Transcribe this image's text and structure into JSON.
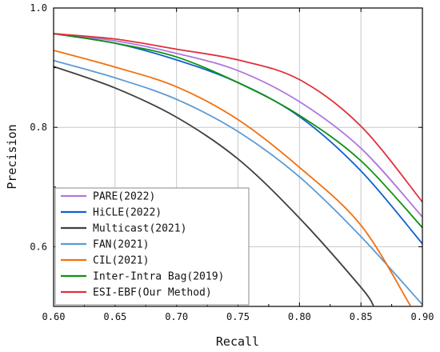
{
  "chart_data": {
    "type": "line",
    "title": "",
    "xlabel": "Recall",
    "ylabel": "Precision",
    "xlim": [
      0.6,
      0.9
    ],
    "ylim": [
      0.5,
      1.0
    ],
    "xticks": [
      0.6,
      0.65,
      0.7,
      0.75,
      0.8,
      0.85,
      0.9
    ],
    "xtick_labels": [
      "0.60",
      "0.65",
      "0.70",
      "0.75",
      "0.80",
      "0.85",
      "0.90"
    ],
    "yticks": [
      0.6,
      0.8,
      1.0
    ],
    "ytick_labels": [
      "0.6",
      "0.8",
      "1.0"
    ],
    "grid": true,
    "legend_position": "bottom-left",
    "series": [
      {
        "name": "PARE(2022)",
        "color": "#b077dc",
        "x": [
          0.6,
          0.65,
          0.7,
          0.75,
          0.8,
          0.85,
          0.9
        ],
        "y": [
          0.957,
          0.945,
          0.924,
          0.895,
          0.843,
          0.765,
          0.65
        ]
      },
      {
        "name": "HiCLE(2022)",
        "color": "#1060d0",
        "x": [
          0.6,
          0.65,
          0.7,
          0.75,
          0.8,
          0.85,
          0.9
        ],
        "y": [
          0.957,
          0.941,
          0.913,
          0.875,
          0.818,
          0.727,
          0.605
        ]
      },
      {
        "name": "Multicast(2021)",
        "color": "#404040",
        "x": [
          0.6,
          0.65,
          0.7,
          0.75,
          0.8,
          0.85,
          0.86
        ],
        "y": [
          0.902,
          0.866,
          0.817,
          0.747,
          0.648,
          0.532,
          0.502
        ]
      },
      {
        "name": "FAN(2021)",
        "color": "#5b9bd5",
        "x": [
          0.6,
          0.65,
          0.7,
          0.75,
          0.8,
          0.85,
          0.9
        ],
        "y": [
          0.912,
          0.883,
          0.847,
          0.793,
          0.717,
          0.617,
          0.503
        ]
      },
      {
        "name": "CIL(2021)",
        "color": "#f07010",
        "x": [
          0.6,
          0.65,
          0.7,
          0.75,
          0.8,
          0.85,
          0.89
        ],
        "y": [
          0.929,
          0.901,
          0.868,
          0.813,
          0.733,
          0.636,
          0.502
        ]
      },
      {
        "name": "Inter-Intra Bag(2019)",
        "color": "#109010",
        "x": [
          0.6,
          0.65,
          0.7,
          0.75,
          0.8,
          0.85,
          0.9
        ],
        "y": [
          0.957,
          0.941,
          0.918,
          0.875,
          0.82,
          0.744,
          0.632
        ]
      },
      {
        "name": "ESI-EBF(Our Method)",
        "color": "#e0303a",
        "x": [
          0.6,
          0.65,
          0.7,
          0.75,
          0.8,
          0.85,
          0.9
        ],
        "y": [
          0.957,
          0.948,
          0.931,
          0.913,
          0.88,
          0.802,
          0.675
        ]
      }
    ]
  }
}
